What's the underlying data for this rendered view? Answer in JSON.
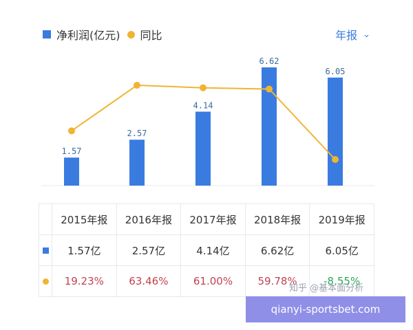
{
  "legend": {
    "bar_label": "净利润(亿元)",
    "line_label": "同比"
  },
  "period_selector": {
    "label": "年报"
  },
  "chart_data": {
    "type": "bar",
    "categories": [
      "2015年报",
      "2016年报",
      "2017年报",
      "2018年报",
      "2019年报"
    ],
    "series": [
      {
        "name": "净利润(亿元)",
        "type": "bar",
        "values": [
          1.57,
          2.57,
          4.14,
          6.62,
          6.05
        ],
        "color": "#3a7be0"
      },
      {
        "name": "同比",
        "type": "line",
        "values": [
          19.23,
          63.46,
          61.0,
          59.78,
          -8.55
        ],
        "color": "#f0b433"
      }
    ],
    "grid": false,
    "legend_position": "top-left"
  },
  "table": {
    "headers": [
      "2015年报",
      "2016年报",
      "2017年报",
      "2018年报",
      "2019年报"
    ],
    "profit_row": [
      "1.57亿",
      "2.57亿",
      "4.14亿",
      "6.62亿",
      "6.05亿"
    ],
    "yoy_row": [
      "19.23%",
      "63.46%",
      "61.00%",
      "59.78%",
      "-8.55%"
    ]
  },
  "watermark": "知乎 @基本面分析",
  "banner": {
    "text": "qianyi-sportsbet.com"
  },
  "colors": {
    "bar": "#3a7be0",
    "line": "#f0b433",
    "positive": "#c0434f",
    "negative": "#2aa55a",
    "banner": "#8f8fe8"
  }
}
